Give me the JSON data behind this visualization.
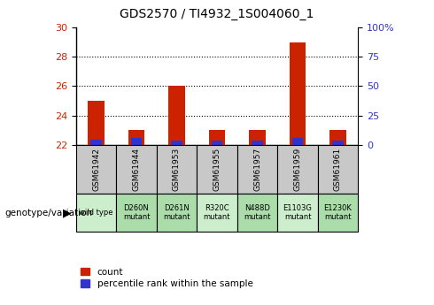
{
  "title": "GDS2570 / TI4932_1S004060_1",
  "categories": [
    "GSM61942",
    "GSM61944",
    "GSM61953",
    "GSM61955",
    "GSM61957",
    "GSM61959",
    "GSM61961"
  ],
  "genotype": [
    "wild type",
    "D260N\nmutant",
    "D261N\nmutant",
    "R320C\nmutant",
    "N488D\nmutant",
    "E1103G\nmutant",
    "E1230K\nmutant"
  ],
  "red_values": [
    25.0,
    23.0,
    26.0,
    23.0,
    23.0,
    29.0,
    23.0
  ],
  "blue_values": [
    22.35,
    22.45,
    22.3,
    22.3,
    22.3,
    22.45,
    22.3
  ],
  "baseline": 22,
  "ylim_left": [
    22,
    30
  ],
  "ylim_right": [
    0,
    100
  ],
  "yticks_left": [
    22,
    24,
    26,
    28,
    30
  ],
  "yticks_right": [
    0,
    25,
    50,
    75,
    100
  ],
  "ytick_labels_right": [
    "0",
    "25",
    "50",
    "75",
    "100%"
  ],
  "red_color": "#CC2200",
  "blue_color": "#3333CC",
  "bar_width": 0.4,
  "blue_bar_width": 0.28,
  "grid_color": "black",
  "title_fontsize": 10,
  "tick_fontsize": 8,
  "label_color_left": "#CC2200",
  "label_color_right": "#3333CC",
  "bg_color_gsm": "#C8C8C8",
  "bg_color_genotype_light": "#CCEECC",
  "bg_color_genotype_dark": "#AADDAA",
  "legend_items": [
    "count",
    "percentile rank within the sample"
  ],
  "legend_colors": [
    "#CC2200",
    "#3333CC"
  ]
}
